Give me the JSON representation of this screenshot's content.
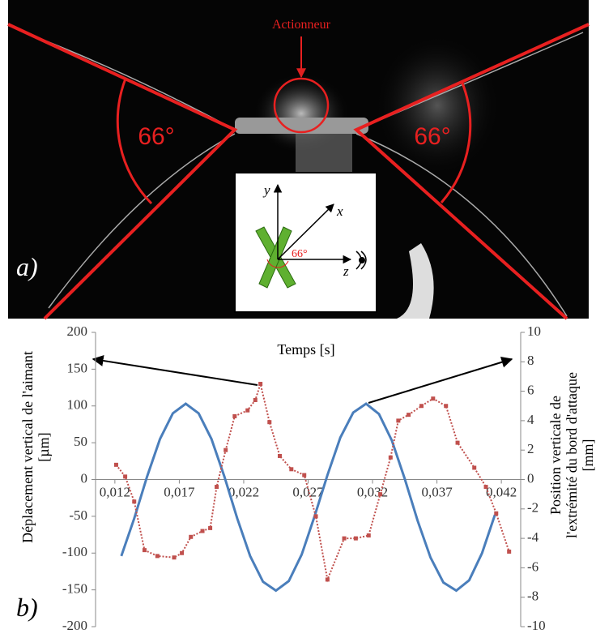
{
  "photo": {
    "annotation": "Actionneur",
    "angle_left": "66°",
    "angle_right": "66°",
    "panel_label": "a)",
    "inset": {
      "axis_y": "y",
      "axis_x": "x",
      "axis_z": "z",
      "angle": "66°"
    }
  },
  "chart_data": {
    "type": "line",
    "panel_label": "b)",
    "xlabel": "Temps [s]",
    "ylabel": [
      "Déplacement vertical de l'aimant",
      "[µm]"
    ],
    "y2label": [
      "Position verticale de",
      "l'extrémité du bord d'attaque",
      "[mm]"
    ],
    "xlim": [
      0.0105,
      0.0435
    ],
    "xticks": [
      {
        "value": 0.012,
        "label": "0,012"
      },
      {
        "value": 0.017,
        "label": "0,017"
      },
      {
        "value": 0.022,
        "label": "0,022"
      },
      {
        "value": 0.027,
        "label": "0,027"
      },
      {
        "value": 0.032,
        "label": "0,032"
      },
      {
        "value": 0.037,
        "label": "0,037"
      },
      {
        "value": 0.042,
        "label": "0,042"
      }
    ],
    "ylim": [
      -200,
      200
    ],
    "yticks": [
      200,
      150,
      100,
      50,
      0,
      -50,
      -100,
      -150,
      -200
    ],
    "y2lim": [
      -10,
      10
    ],
    "y2ticks": [
      10,
      8,
      6,
      4,
      2,
      0,
      -2,
      -4,
      -6,
      -8,
      -10
    ],
    "series": [
      {
        "color": "#4a7ebb",
        "style": "solid",
        "x": [
          0.0125,
          0.0135,
          0.0145,
          0.0155,
          0.0165,
          0.0175,
          0.0185,
          0.0195,
          0.0205,
          0.0215,
          0.0225,
          0.0235,
          0.0245,
          0.0255,
          0.0265,
          0.0275,
          0.0285,
          0.0295,
          0.0305,
          0.0315,
          0.0325,
          0.0335,
          0.0345,
          0.0355,
          0.0365,
          0.0375,
          0.0385,
          0.0395,
          0.0405,
          0.0415
        ],
        "values": [
          -104,
          -53,
          4,
          55,
          90,
          103,
          90,
          55,
          4,
          -53,
          -104,
          -139,
          -151,
          -138,
          -102,
          -50,
          6,
          57,
          91,
          103,
          89,
          53,
          1,
          -56,
          -106,
          -140,
          -151,
          -137,
          -100,
          -48
        ]
      },
      {
        "color": "#c0504d",
        "style": "dotted",
        "axis": "y2",
        "x": [
          0.0121,
          0.0128,
          0.0135,
          0.0143,
          0.0153,
          0.0166,
          0.0172,
          0.0179,
          0.0188,
          0.0194,
          0.0199,
          0.0206,
          0.0213,
          0.0223,
          0.0229,
          0.0233,
          0.024,
          0.0248,
          0.0257,
          0.0267,
          0.0276,
          0.0285,
          0.0298,
          0.0307,
          0.0317,
          0.0326,
          0.0334,
          0.034,
          0.0348,
          0.0358,
          0.0367,
          0.0377,
          0.0386,
          0.0399,
          0.0408,
          0.0416,
          0.0426
        ],
        "values": [
          1.0,
          0.2,
          -1.5,
          -4.8,
          -5.2,
          -5.3,
          -5.0,
          -3.9,
          -3.5,
          -3.3,
          -0.5,
          2.0,
          4.3,
          4.7,
          5.4,
          6.5,
          3.9,
          1.6,
          0.7,
          0.3,
          -2.5,
          -6.8,
          -4.0,
          -4.0,
          -3.8,
          -1.0,
          1.5,
          4.0,
          4.4,
          5.0,
          5.5,
          5.0,
          2.5,
          0.8,
          -0.5,
          -2.3,
          -4.9
        ]
      }
    ]
  }
}
